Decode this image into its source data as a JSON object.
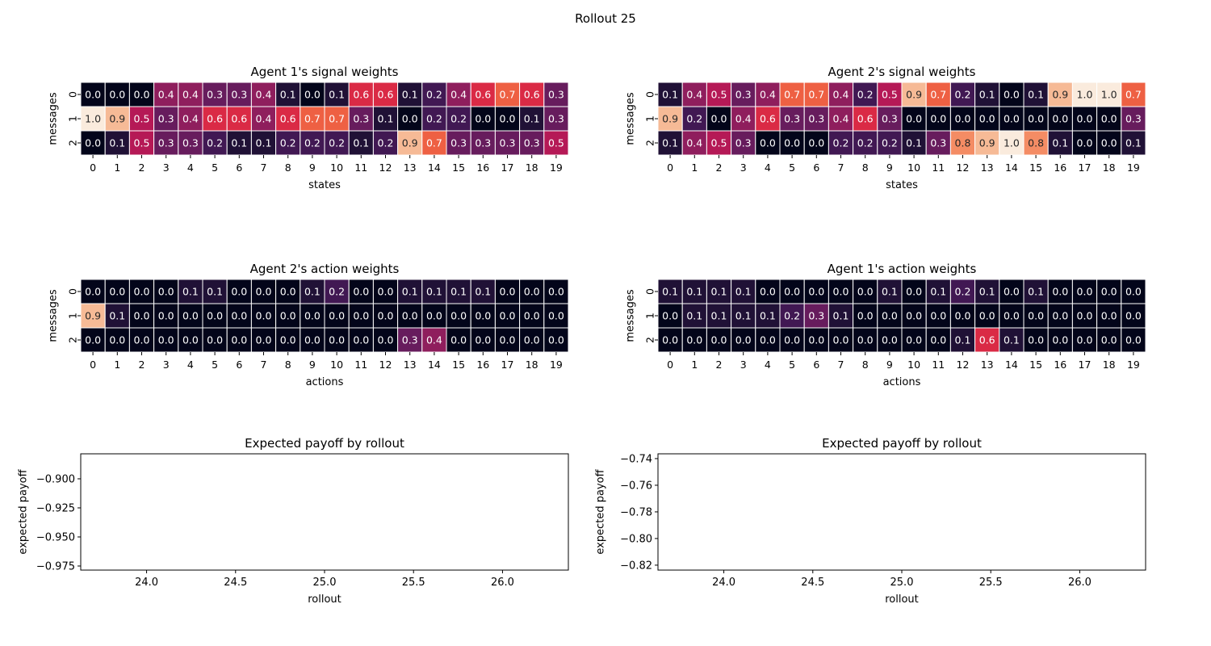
{
  "figure": {
    "title": "Rollout 25"
  },
  "chart_data": [
    {
      "type": "heatmap",
      "title": "Agent 1's signal weights",
      "xlabel": "states",
      "ylabel": "messages",
      "x": [
        0,
        1,
        2,
        3,
        4,
        5,
        6,
        7,
        8,
        9,
        10,
        11,
        12,
        13,
        14,
        15,
        16,
        17,
        18,
        19
      ],
      "y": [
        0,
        1,
        2
      ],
      "values": [
        [
          0.0,
          0.0,
          0.0,
          0.4,
          0.4,
          0.3,
          0.3,
          0.4,
          0.1,
          0.0,
          0.1,
          0.6,
          0.6,
          0.1,
          0.2,
          0.4,
          0.6,
          0.7,
          0.6,
          0.3
        ],
        [
          1.0,
          0.9,
          0.5,
          0.3,
          0.4,
          0.6,
          0.6,
          0.4,
          0.6,
          0.7,
          0.7,
          0.3,
          0.1,
          0.0,
          0.2,
          0.2,
          0.0,
          0.0,
          0.1,
          0.3
        ],
        [
          0.0,
          0.1,
          0.5,
          0.3,
          0.3,
          0.2,
          0.1,
          0.1,
          0.2,
          0.2,
          0.2,
          0.1,
          0.2,
          0.9,
          0.7,
          0.3,
          0.3,
          0.3,
          0.3,
          0.5
        ]
      ]
    },
    {
      "type": "heatmap",
      "title": "Agent 2's signal weights",
      "xlabel": "states",
      "ylabel": "messages",
      "x": [
        0,
        1,
        2,
        3,
        4,
        5,
        6,
        7,
        8,
        9,
        10,
        11,
        12,
        13,
        14,
        15,
        16,
        17,
        18,
        19
      ],
      "y": [
        0,
        1,
        2
      ],
      "values": [
        [
          0.1,
          0.4,
          0.5,
          0.3,
          0.4,
          0.7,
          0.7,
          0.4,
          0.2,
          0.5,
          0.9,
          0.7,
          0.2,
          0.1,
          0.0,
          0.1,
          0.9,
          1.0,
          1.0,
          0.7
        ],
        [
          0.9,
          0.2,
          0.0,
          0.4,
          0.6,
          0.3,
          0.3,
          0.4,
          0.6,
          0.3,
          0.0,
          0.0,
          0.0,
          0.0,
          0.0,
          0.0,
          0.0,
          0.0,
          0.0,
          0.3
        ],
        [
          0.1,
          0.4,
          0.5,
          0.3,
          0.0,
          0.0,
          0.0,
          0.2,
          0.2,
          0.2,
          0.1,
          0.3,
          0.8,
          0.9,
          1.0,
          0.8,
          0.1,
          0.0,
          0.0,
          0.1
        ]
      ]
    },
    {
      "type": "heatmap",
      "title": "Agent 2's action weights",
      "xlabel": "actions",
      "ylabel": "messages",
      "x": [
        0,
        1,
        2,
        3,
        4,
        5,
        6,
        7,
        8,
        9,
        10,
        11,
        12,
        13,
        14,
        15,
        16,
        17,
        18,
        19
      ],
      "y": [
        0,
        1,
        2
      ],
      "values": [
        [
          0.0,
          0.0,
          0.0,
          0.0,
          0.1,
          0.1,
          0.0,
          0.0,
          0.0,
          0.1,
          0.2,
          0.0,
          0.0,
          0.1,
          0.1,
          0.1,
          0.1,
          0.0,
          0.0,
          0.0
        ],
        [
          0.9,
          0.1,
          0.0,
          0.0,
          0.0,
          0.0,
          0.0,
          0.0,
          0.0,
          0.0,
          0.0,
          0.0,
          0.0,
          0.0,
          0.0,
          0.0,
          0.0,
          0.0,
          0.0,
          0.0
        ],
        [
          0.0,
          0.0,
          0.0,
          0.0,
          0.0,
          0.0,
          0.0,
          0.0,
          0.0,
          0.0,
          0.0,
          0.0,
          0.0,
          0.3,
          0.4,
          0.0,
          0.0,
          0.0,
          0.0,
          0.0
        ]
      ]
    },
    {
      "type": "heatmap",
      "title": "Agent 1's action weights",
      "xlabel": "actions",
      "ylabel": "messages",
      "x": [
        0,
        1,
        2,
        3,
        4,
        5,
        6,
        7,
        8,
        9,
        10,
        11,
        12,
        13,
        14,
        15,
        16,
        17,
        18,
        19
      ],
      "y": [
        0,
        1,
        2
      ],
      "values": [
        [
          0.1,
          0.1,
          0.1,
          0.1,
          0.0,
          0.0,
          0.0,
          0.0,
          0.0,
          0.1,
          0.0,
          0.1,
          0.2,
          0.1,
          0.0,
          0.1,
          0.0,
          0.0,
          0.0,
          0.0
        ],
        [
          0.0,
          0.1,
          0.1,
          0.1,
          0.1,
          0.2,
          0.3,
          0.1,
          0.0,
          0.0,
          0.0,
          0.0,
          0.0,
          0.0,
          0.0,
          0.0,
          0.0,
          0.0,
          0.0,
          0.0
        ],
        [
          0.0,
          0.0,
          0.0,
          0.0,
          0.0,
          0.0,
          0.0,
          0.0,
          0.0,
          0.0,
          0.0,
          0.0,
          0.1,
          0.6,
          0.1,
          0.0,
          0.0,
          0.0,
          0.0,
          0.0
        ]
      ]
    },
    {
      "type": "line",
      "title": "Expected payoff by rollout",
      "xlabel": "rollout",
      "ylabel": "expected payoff",
      "xlim": [
        23.63,
        26.37
      ],
      "ylim": [
        -0.9785,
        -0.8785
      ],
      "xticks": [
        "24.0",
        "24.5",
        "25.0",
        "25.5",
        "26.0"
      ],
      "yticks": [
        "-0.900",
        "-0.925",
        "-0.950",
        "-0.975"
      ],
      "series": []
    },
    {
      "type": "line",
      "title": "Expected payoff by rollout",
      "xlabel": "rollout",
      "ylabel": "expected payoff",
      "xlim": [
        23.63,
        26.37
      ],
      "ylim": [
        -0.8237,
        -0.7364
      ],
      "xticks": [
        "24.0",
        "24.5",
        "25.0",
        "25.5",
        "26.0"
      ],
      "yticks": [
        "-0.74",
        "-0.76",
        "-0.78",
        "-0.80",
        "-0.82"
      ],
      "series": []
    }
  ]
}
